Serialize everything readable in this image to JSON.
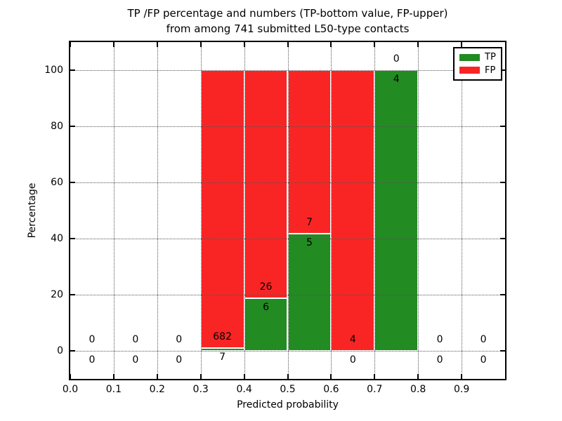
{
  "title": "TP /FP percentage and numbers (TP-bottom value, FP-upper)",
  "subtitle": "from among 741 submitted L50-type contacts",
  "legend": {
    "position": "upper right",
    "items": [
      {
        "label": "TP",
        "color": "#228b22"
      },
      {
        "label": "FP",
        "color": "#f92525"
      }
    ]
  },
  "chart_data": {
    "type": "bar",
    "stacked": true,
    "title": "TP /FP percentage and numbers (TP-bottom value, FP-upper) from among 741 submitted L50-type contacts",
    "xlabel": "Predicted probability",
    "ylabel": "Percentage",
    "xlim": [
      0.0,
      1.0
    ],
    "ylim": [
      -10,
      110
    ],
    "x_ticks": [
      "0.0",
      "0.1",
      "0.2",
      "0.3",
      "0.4",
      "0.5",
      "0.6",
      "0.7",
      "0.8",
      "0.9"
    ],
    "y_ticks": [
      0,
      20,
      40,
      60,
      80,
      100
    ],
    "grid": true,
    "grid_style": "dotted",
    "total_contacts": 741,
    "colors": {
      "tp": "#228b22",
      "fp": "#f92525"
    },
    "bins": [
      {
        "range": [
          0.0,
          0.1
        ],
        "tp": 0,
        "fp": 0,
        "tp_pct": 0,
        "fp_pct": 0
      },
      {
        "range": [
          0.1,
          0.2
        ],
        "tp": 0,
        "fp": 0,
        "tp_pct": 0,
        "fp_pct": 0
      },
      {
        "range": [
          0.2,
          0.3
        ],
        "tp": 0,
        "fp": 0,
        "tp_pct": 0,
        "fp_pct": 0
      },
      {
        "range": [
          0.3,
          0.4
        ],
        "tp": 7,
        "fp": 682,
        "tp_pct": 1.02,
        "fp_pct": 98.98
      },
      {
        "range": [
          0.4,
          0.5
        ],
        "tp": 6,
        "fp": 26,
        "tp_pct": 18.75,
        "fp_pct": 81.25
      },
      {
        "range": [
          0.5,
          0.6
        ],
        "tp": 5,
        "fp": 7,
        "tp_pct": 41.67,
        "fp_pct": 58.33
      },
      {
        "range": [
          0.6,
          0.7
        ],
        "tp": 0,
        "fp": 4,
        "tp_pct": 0,
        "fp_pct": 100
      },
      {
        "range": [
          0.7,
          0.8
        ],
        "tp": 4,
        "fp": 0,
        "tp_pct": 100,
        "fp_pct": 0
      },
      {
        "range": [
          0.8,
          0.9
        ],
        "tp": 0,
        "fp": 0,
        "tp_pct": 0,
        "fp_pct": 0
      },
      {
        "range": [
          0.9,
          1.0
        ],
        "tp": 0,
        "fp": 0,
        "tp_pct": 0,
        "fp_pct": 0
      }
    ]
  }
}
